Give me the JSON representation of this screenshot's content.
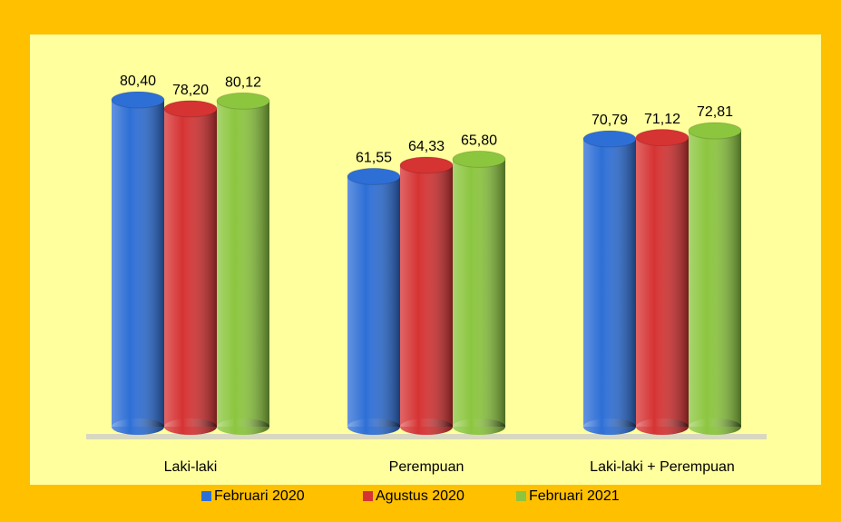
{
  "chart_data": {
    "type": "bar",
    "categories": [
      "Laki-laki",
      "Perempuan",
      "Laki-laki + Perempuan"
    ],
    "series": [
      {
        "name": "Februari 2020",
        "color": "#2e6fd6",
        "values": [
          80.4,
          61.55,
          70.79
        ],
        "value_labels": [
          "80,40",
          "61,55",
          "70,79"
        ]
      },
      {
        "name": "Agustus 2020",
        "color": "#d63333",
        "values": [
          78.2,
          64.33,
          71.12
        ],
        "value_labels": [
          "78,20",
          "64,33",
          "71,12"
        ]
      },
      {
        "name": "Februari 2021",
        "color": "#8cc63f",
        "values": [
          80.12,
          65.8,
          72.81
        ],
        "value_labels": [
          "80,12",
          "65,80",
          "72,81"
        ]
      }
    ],
    "legend": "bottom"
  }
}
